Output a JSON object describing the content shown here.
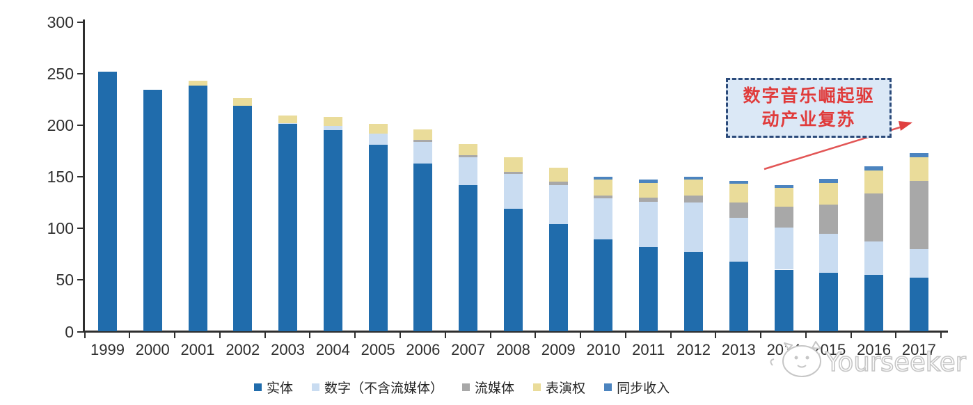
{
  "chart_data": {
    "type": "bar",
    "stacked": true,
    "categories": [
      "1999",
      "2000",
      "2001",
      "2002",
      "2003",
      "2004",
      "2005",
      "2006",
      "2007",
      "2008",
      "2009",
      "2010",
      "2011",
      "2012",
      "2013",
      "2014",
      "2015",
      "2016",
      "2017"
    ],
    "series": [
      {
        "name": "实体",
        "color": "#206cac",
        "values": [
          252,
          234,
          238,
          219,
          201,
          195,
          181,
          163,
          142,
          119,
          104,
          89,
          82,
          77,
          68,
          60,
          57,
          55,
          52
        ]
      },
      {
        "name": "数字（不含流媒体）",
        "color": "#c9dcf1",
        "values": [
          0,
          0,
          0,
          0,
          1,
          4,
          11,
          21,
          27,
          34,
          38,
          40,
          44,
          48,
          42,
          41,
          38,
          32,
          28
        ]
      },
      {
        "name": "流媒体",
        "color": "#a8a8a8",
        "values": [
          0,
          0,
          0,
          0,
          0,
          0,
          0,
          2,
          2,
          2,
          3,
          3,
          4,
          7,
          15,
          20,
          28,
          47,
          66
        ]
      },
      {
        "name": "表演权",
        "color": "#eadc9a",
        "values": [
          0,
          0,
          5,
          7,
          7,
          9,
          9,
          10,
          11,
          14,
          14,
          15,
          14,
          15,
          18,
          18,
          21,
          22,
          23
        ]
      },
      {
        "name": "同步收入",
        "color": "#4c84bf",
        "values": [
          0,
          0,
          0,
          0,
          0,
          0,
          0,
          0,
          0,
          0,
          0,
          3,
          3,
          3,
          3,
          3,
          4,
          4,
          4
        ]
      }
    ],
    "ylim": [
      0,
      300
    ],
    "yticks": [
      0,
      50,
      100,
      150,
      200,
      250,
      300
    ],
    "grid": false,
    "legend_position": "bottom",
    "title": "",
    "xlabel": "",
    "ylabel": ""
  },
  "annotation": {
    "full_text": "数字音乐崛起驱动产业复苏",
    "line1": "数字音乐崛起驱",
    "line2": "动产业复苏",
    "text_color": "#e03b3b",
    "box_fill": "#dbe8f6",
    "box_border": "#2b4a7a",
    "arrow_color": "#e25555"
  },
  "watermark": {
    "text": "Yourseeker",
    "color": "#c6c6c6"
  },
  "colors": {
    "axis": "#2e2e2e",
    "tick_label": "#2f2f2f",
    "background": "#ffffff"
  }
}
